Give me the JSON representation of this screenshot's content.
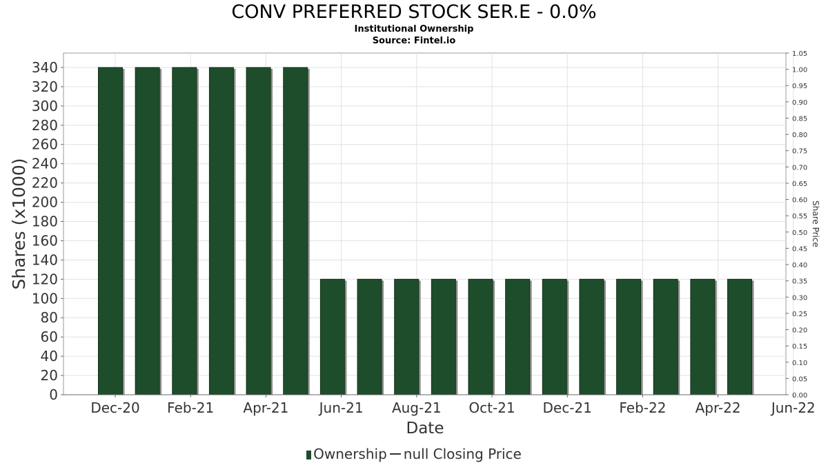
{
  "header": {
    "title": "CONV PREFERRED STOCK SER.E - 0.0%",
    "subtitle": "Institutional Ownership",
    "source": "Source: Fintel.io"
  },
  "legend": {
    "ownership": "Ownership",
    "price": "null Closing Price"
  },
  "colors": {
    "bar": "#1e4d2b",
    "bar_shadow": "#8c8c8c",
    "grid": "#e0e0e0"
  },
  "chart_data": {
    "type": "bar",
    "title": "CONV PREFERRED STOCK SER.E - 0.0%",
    "xlabel": "Date",
    "ylabel": "Shares (x1000)",
    "y2label": "Share Price",
    "x_ticks": [
      "Dec-20",
      "Feb-21",
      "Apr-21",
      "Jun-21",
      "Aug-21",
      "Oct-21",
      "Dec-21",
      "Feb-22",
      "Apr-22",
      "Jun-22"
    ],
    "y_ticks": [
      0,
      20,
      40,
      60,
      80,
      100,
      120,
      140,
      160,
      180,
      200,
      220,
      240,
      260,
      280,
      300,
      320,
      340
    ],
    "y2_ticks": [
      "0.00",
      "0.05",
      "0.10",
      "0.15",
      "0.20",
      "0.25",
      "0.30",
      "0.35",
      "0.40",
      "0.45",
      "0.50",
      "0.55",
      "0.60",
      "0.65",
      "0.70",
      "0.75",
      "0.80",
      "0.85",
      "0.90",
      "0.95",
      "1.00",
      "1.05"
    ],
    "ylim": [
      0,
      355
    ],
    "y2lim": [
      0,
      1.05
    ],
    "grid": true,
    "legend_position": "bottom",
    "series": [
      {
        "name": "Ownership",
        "values": [
          340,
          340,
          340,
          340,
          340,
          340,
          120,
          120,
          120,
          120,
          120,
          120,
          120,
          120,
          120,
          120,
          120,
          120
        ]
      }
    ]
  }
}
